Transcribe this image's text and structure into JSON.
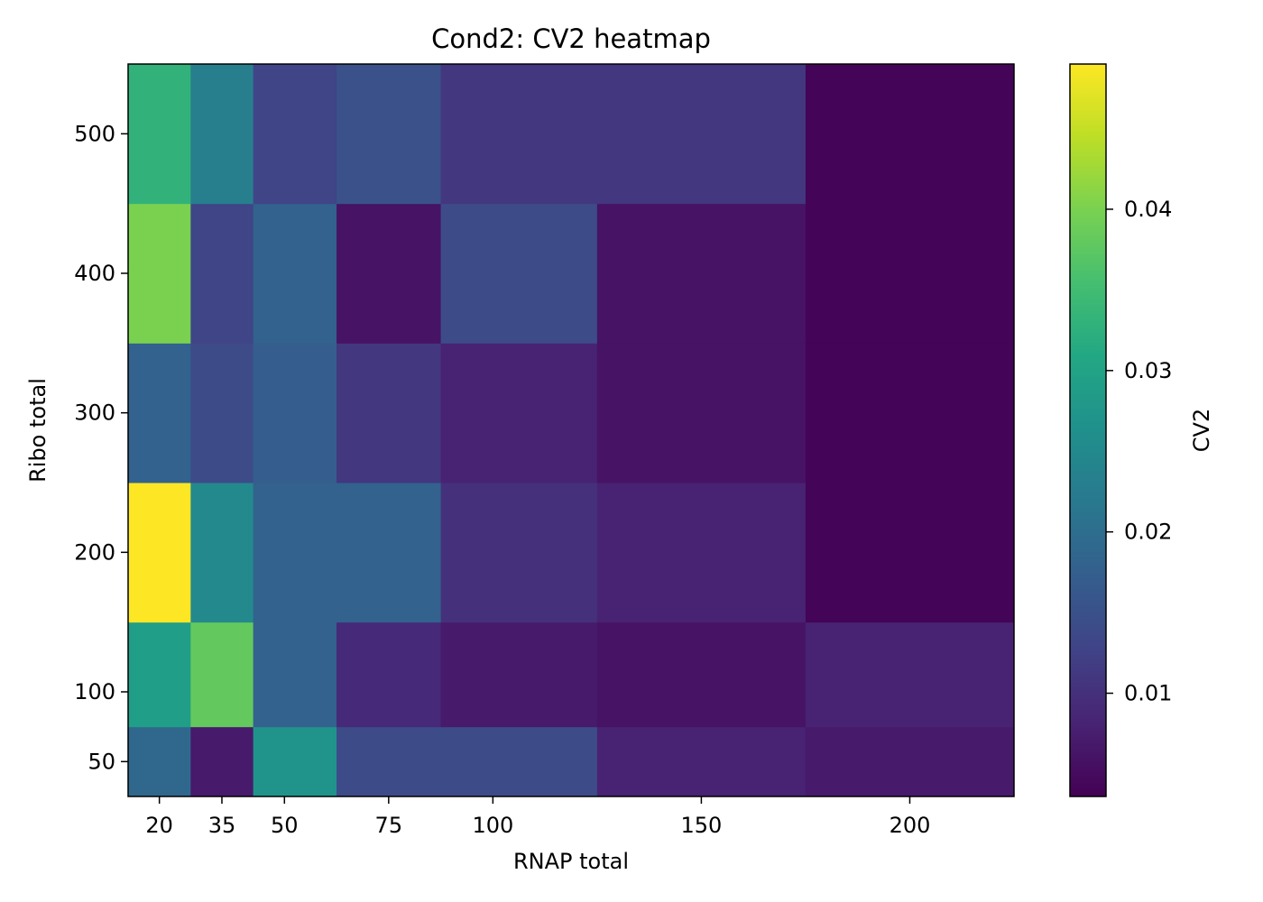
{
  "chart_data": {
    "type": "heatmap",
    "title": "Cond2: CV2 heatmap",
    "xlabel": "RNAP total",
    "ylabel": "Ribo total",
    "x": [
      20,
      35,
      50,
      75,
      100,
      150,
      200
    ],
    "y": [
      50,
      100,
      200,
      300,
      400,
      500
    ],
    "x_tick_labels": [
      "20",
      "35",
      "50",
      "75",
      "100",
      "150",
      "200"
    ],
    "y_tick_labels": [
      "50",
      "100",
      "200",
      "300",
      "400",
      "500"
    ],
    "x_range": [
      12.5,
      225
    ],
    "y_range": [
      25,
      550
    ],
    "z": [
      [
        0.019,
        0.007,
        0.027,
        0.014,
        0.014,
        0.008,
        0.007
      ],
      [
        0.029,
        0.038,
        0.018,
        0.009,
        0.007,
        0.006,
        0.008
      ],
      [
        0.049,
        0.025,
        0.018,
        0.018,
        0.01,
        0.008,
        0.004
      ],
      [
        0.018,
        0.014,
        0.017,
        0.011,
        0.008,
        0.006,
        0.004
      ],
      [
        0.04,
        0.013,
        0.018,
        0.006,
        0.014,
        0.006,
        0.004
      ],
      [
        0.033,
        0.023,
        0.013,
        0.015,
        0.011,
        0.011,
        0.004
      ]
    ],
    "colorbar": {
      "label": "CV2",
      "colormap": "viridis",
      "range": [
        0.0036,
        0.049
      ],
      "ticks": [
        0.01,
        0.02,
        0.03,
        0.04
      ],
      "tick_labels": [
        "0.01",
        "0.02",
        "0.03",
        "0.04"
      ]
    },
    "grid": false
  }
}
